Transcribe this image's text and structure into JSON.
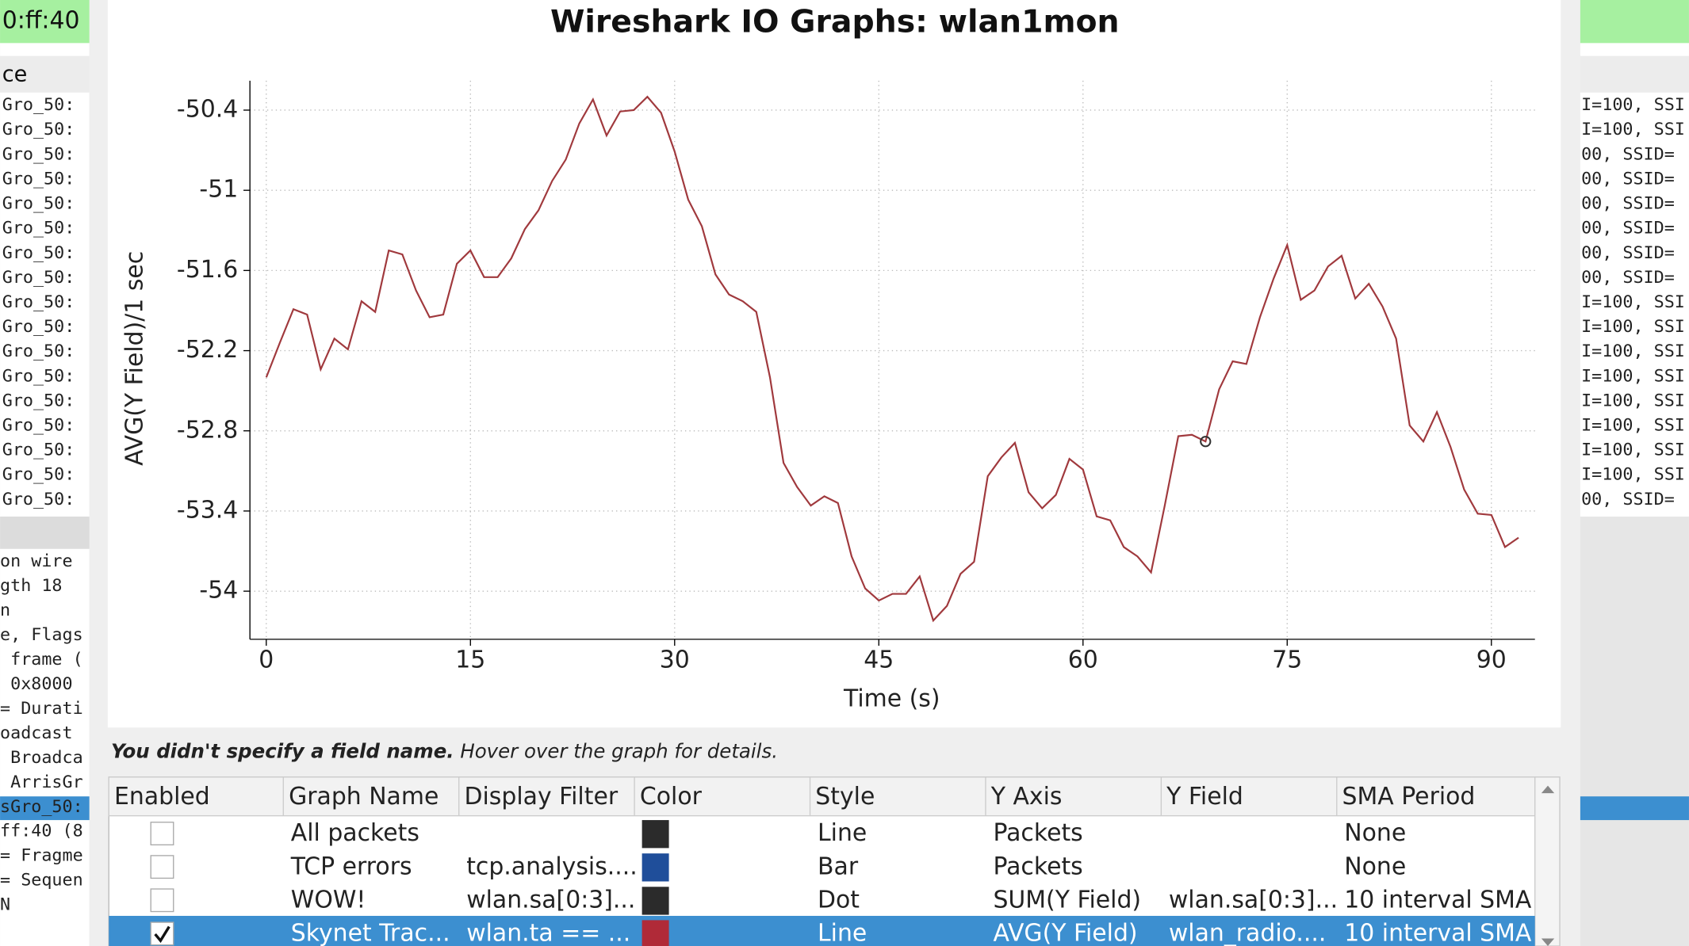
{
  "background": {
    "left_top": "0:ff:40",
    "left_header": "ce",
    "left_rows": [
      "Gro_50:",
      "Gro_50:",
      "Gro_50:",
      "Gro_50:",
      "Gro_50:",
      "Gro_50:",
      "Gro_50:",
      "Gro_50:",
      "Gro_50:",
      "Gro_50:",
      "Gro_50:",
      "Gro_50:",
      "Gro_50:",
      "Gro_50:",
      "Gro_50:",
      "Gro_50:",
      "Gro_50:"
    ],
    "left_details": [
      "on wire",
      "gth 18",
      "n",
      "e, Flags",
      " frame (",
      " 0x8000",
      "= Durati",
      "oadcast",
      " Broadca",
      " ArrisGr",
      "sGro_50:",
      "ff:40 (8",
      "= Fragme",
      "= Sequen",
      "N"
    ],
    "right_rows": [
      "I=100, SSI",
      "I=100, SSI",
      "00, SSID=",
      "00, SSID=",
      "00, SSID=",
      "00, SSID=",
      "00, SSID=",
      "00, SSID=",
      "I=100, SSI",
      "I=100, SSI",
      "I=100, SSI",
      "I=100, SSI",
      "I=100, SSI",
      "I=100, SSI",
      "I=100, SSI",
      "I=100, SSI",
      "00, SSID="
    ]
  },
  "chart_data": {
    "type": "line",
    "title": "Wireshark IO Graphs: wlan1mon",
    "x_label": "Time (s)",
    "y_label": "AVG(Y Field)/1 sec",
    "x": [
      0,
      1,
      2,
      3,
      4,
      5,
      6,
      7,
      8,
      9,
      10,
      11,
      12,
      13,
      14,
      15,
      16,
      17,
      18,
      19,
      20,
      21,
      22,
      23,
      24,
      25,
      26,
      27,
      28,
      29,
      30,
      31,
      32,
      33,
      34,
      35,
      36,
      37,
      38,
      39,
      40,
      41,
      42,
      43,
      44,
      45,
      46,
      47,
      48,
      49,
      50,
      51,
      52,
      53,
      54,
      55,
      56,
      57,
      58,
      59,
      60,
      61,
      62,
      63,
      64,
      65,
      66,
      67,
      68,
      69,
      70,
      71,
      72,
      73,
      74,
      75,
      76,
      77,
      78,
      79,
      80,
      81,
      82,
      83,
      84,
      85,
      86,
      87,
      88,
      89,
      90,
      91,
      92
    ],
    "values": [
      -52.4,
      -52.14,
      -51.89,
      -51.93,
      -52.34,
      -52.11,
      -52.19,
      -51.83,
      -51.91,
      -51.45,
      -51.48,
      -51.75,
      -51.95,
      -51.93,
      -51.55,
      -51.45,
      -51.65,
      -51.65,
      -51.51,
      -51.29,
      -51.15,
      -50.93,
      -50.77,
      -50.5,
      -50.32,
      -50.59,
      -50.41,
      -50.4,
      -50.3,
      -50.42,
      -50.71,
      -51.07,
      -51.27,
      -51.63,
      -51.78,
      -51.83,
      -51.91,
      -52.4,
      -53.04,
      -53.22,
      -53.36,
      -53.29,
      -53.34,
      -53.74,
      -53.98,
      -54.07,
      -54.02,
      -54.02,
      -53.89,
      -54.22,
      -54.11,
      -53.87,
      -53.78,
      -53.14,
      -53.0,
      -52.89,
      -53.26,
      -53.38,
      -53.28,
      -53.01,
      -53.09,
      -53.44,
      -53.47,
      -53.67,
      -53.74,
      -53.86,
      -53.36,
      -52.84,
      -52.83,
      -52.88,
      -52.49,
      -52.28,
      -52.3,
      -51.95,
      -51.66,
      -51.41,
      -51.82,
      -51.75,
      -51.57,
      -51.49,
      -51.81,
      -51.7,
      -51.87,
      -52.11,
      -52.76,
      -52.88,
      -52.66,
      -52.92,
      -53.24,
      -53.42,
      -53.43,
      -53.67,
      -53.6
    ],
    "color": "#a0393d",
    "xlim": [
      -1.2,
      93.2
    ],
    "xticks": [
      0,
      15,
      30,
      45,
      60,
      75,
      90
    ],
    "ylim": [
      -54.36,
      -50.18
    ],
    "yticks": [
      -50.4,
      -51,
      -51.6,
      -52.2,
      -52.8,
      -53.4,
      -54
    ],
    "grid": true
  },
  "hint": {
    "bold": "You didn't specify a field name.",
    "rest": "Hover over the graph for details."
  },
  "table": {
    "columns": [
      "Enabled",
      "Graph Name",
      "Display Filter",
      "Color",
      "Style",
      "Y Axis",
      "Y Field",
      "SMA Period"
    ],
    "rows": [
      {
        "enabled": false,
        "name": "All packets",
        "filter": null,
        "color": "#2b2b2b",
        "style": "Line",
        "y_axis": "Packets",
        "y_field": null,
        "sma": "None"
      },
      {
        "enabled": false,
        "name": "TCP errors",
        "filter": "tcp.analysis....",
        "color": "#1f4e9a",
        "style": "Bar",
        "y_axis": "Packets",
        "y_field": null,
        "sma": "None"
      },
      {
        "enabled": false,
        "name": "WOW!",
        "filter": "wlan.sa[0:3]...",
        "color": "#2b2b2b",
        "style": "Dot",
        "y_axis": "SUM(Y Field)",
        "y_field": "wlan.sa[0:3]...",
        "sma": "10 interval SMA"
      },
      {
        "enabled": true,
        "name": "Skynet Trac...",
        "filter": "wlan.ta == ...",
        "color": "#b02a38",
        "style": "Line",
        "y_axis": "AVG(Y Field)",
        "y_field": "wlan_radio....",
        "sma": "10 interval SMA"
      }
    ]
  }
}
